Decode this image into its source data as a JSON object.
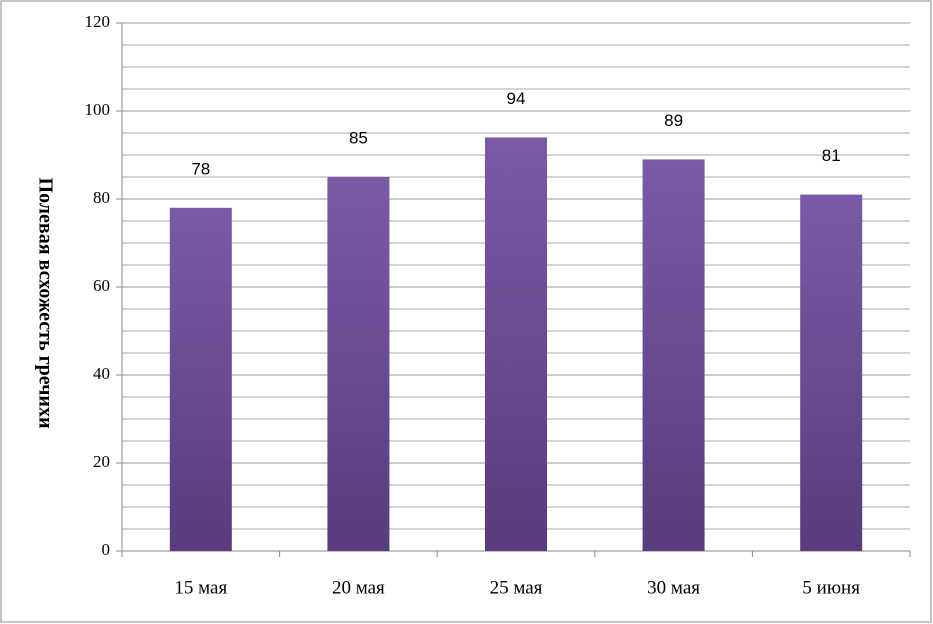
{
  "chart_data": {
    "type": "bar",
    "y_label": "Полевая всхожесть гречихи",
    "categories": [
      "15 мая",
      "20 мая",
      "25 мая",
      "30 мая",
      "5 июня"
    ],
    "values": [
      78,
      85,
      94,
      89,
      81
    ],
    "color": "#7b5aa6",
    "ylim": [
      0,
      120
    ],
    "yticks": [
      0,
      20,
      40,
      60,
      80,
      100,
      120
    ],
    "grid": true,
    "minor_grid_step": 5
  }
}
